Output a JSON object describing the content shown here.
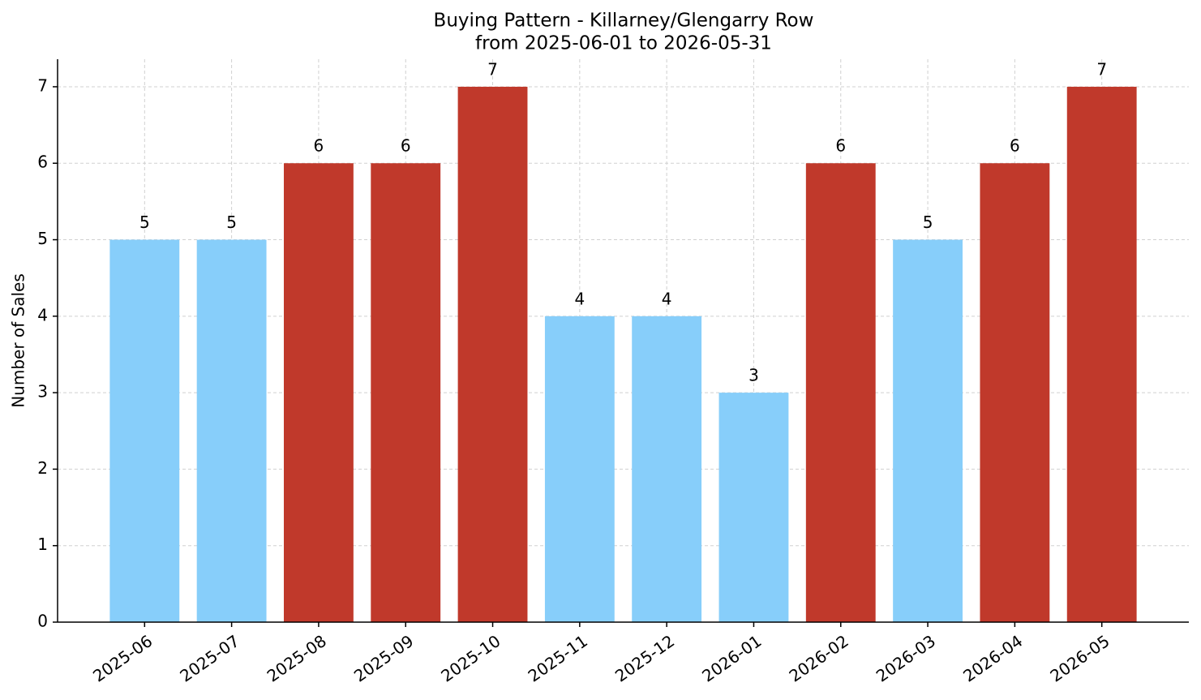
{
  "chart_data": {
    "type": "bar",
    "title": "Buying Pattern - Killarney/Glengarry Row",
    "subtitle": "from 2025-06-01 to 2026-05-31",
    "y_label": "Number of Sales",
    "categories": [
      "2025-06",
      "2025-07",
      "2025-08",
      "2025-09",
      "2025-10",
      "2025-11",
      "2025-12",
      "2026-01",
      "2026-02",
      "2026-03",
      "2026-04",
      "2026-05"
    ],
    "values": [
      5,
      5,
      6,
      6,
      7,
      4,
      4,
      3,
      6,
      5,
      6,
      7
    ],
    "colors": [
      "#87cefa",
      "#87cefa",
      "#c0392b",
      "#c0392b",
      "#c0392b",
      "#87cefa",
      "#87cefa",
      "#87cefa",
      "#c0392b",
      "#87cefa",
      "#c0392b",
      "#c0392b"
    ],
    "ylim": [
      0,
      7.36
    ],
    "yticks": [
      0,
      1,
      2,
      3,
      4,
      5,
      6,
      7
    ],
    "grid": true
  }
}
